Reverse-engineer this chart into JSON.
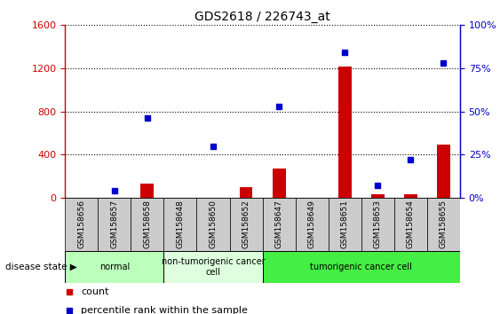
{
  "title": "GDS2618 / 226743_at",
  "samples": [
    "GSM158656",
    "GSM158657",
    "GSM158658",
    "GSM158648",
    "GSM158650",
    "GSM158652",
    "GSM158647",
    "GSM158649",
    "GSM158651",
    "GSM158653",
    "GSM158654",
    "GSM158655"
  ],
  "counts": [
    0,
    0,
    130,
    0,
    0,
    95,
    275,
    0,
    1220,
    30,
    30,
    490
  ],
  "percentiles_raw": [
    null,
    4,
    46,
    null,
    30,
    null,
    53,
    null,
    84,
    7,
    22,
    78
  ],
  "ylim_left": [
    0,
    1600
  ],
  "ylim_right": [
    0,
    100
  ],
  "yticks_left": [
    0,
    400,
    800,
    1200,
    1600
  ],
  "yticks_right": [
    0,
    25,
    50,
    75,
    100
  ],
  "groups": [
    {
      "label": "normal",
      "start": 0,
      "end": 3,
      "color": "#bbffbb"
    },
    {
      "label": "non-tumorigenic cancer\ncell",
      "start": 3,
      "end": 6,
      "color": "#ddffdd"
    },
    {
      "label": "tumorigenic cancer cell",
      "start": 6,
      "end": 12,
      "color": "#44ee44"
    }
  ],
  "bar_color": "#cc0000",
  "dot_color": "#0000cc",
  "left_axis_color": "#cc0000",
  "right_axis_color": "#0000cc",
  "tick_label_bg": "#cccccc",
  "title_fontsize": 10,
  "legend_fontsize": 8,
  "tick_fontsize": 8,
  "label_fontsize": 6.5,
  "disease_fontsize": 7,
  "disease_state_fontsize": 7.5
}
